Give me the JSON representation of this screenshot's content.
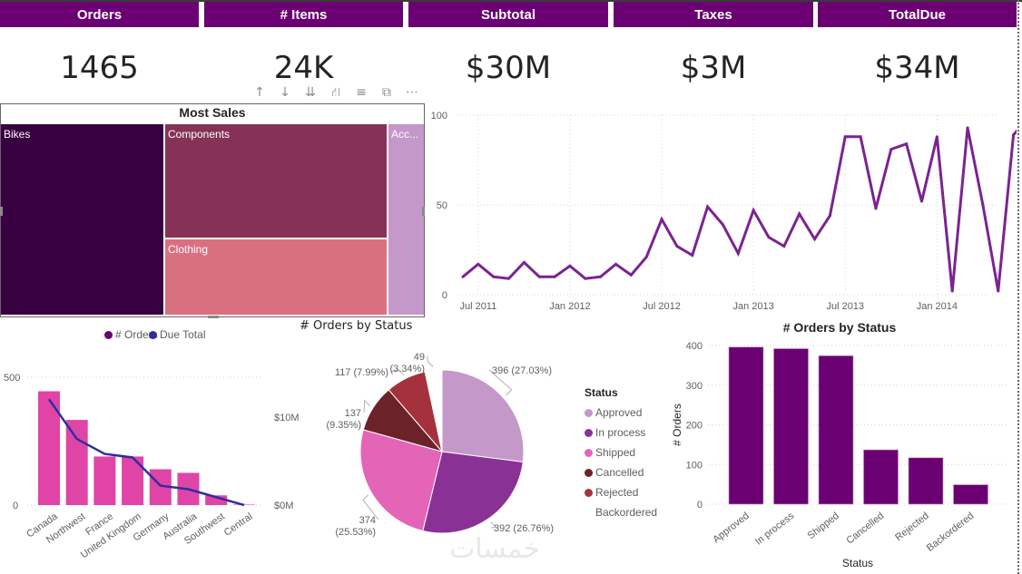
{
  "kpis": [
    {
      "label": "Orders",
      "value": "1465"
    },
    {
      "label": "# Items",
      "value": "24K"
    },
    {
      "label": "Subtotal",
      "value": "$30M"
    },
    {
      "label": "Taxes",
      "value": "$3M"
    },
    {
      "label": "TotalDue",
      "value": "$34M"
    }
  ],
  "colors": {
    "header_bg": "#6b0073",
    "line": "#7b2391",
    "combo_bar": "#e044a7",
    "combo_line": "#2e2e9e",
    "status_bar": "#6b0073"
  },
  "toolbar": {
    "icons": [
      "arrow-up-icon",
      "arrow-down-icon",
      "double-arrow-down-icon",
      "expand-hierarchy-icon",
      "filter-icon",
      "focus-mode-icon",
      "more-options-icon"
    ],
    "glyphs": [
      "↑",
      "↓",
      "⇊",
      "⛙",
      "≡",
      "⧉",
      "⋯"
    ]
  },
  "watermark": "خمسات",
  "chart_data": [
    {
      "type": "treemap",
      "title": "Most Sales",
      "categories": [
        "Bikes",
        "Components",
        "Clothing",
        "Acc..."
      ],
      "colors": [
        "#380040",
        "#863257",
        "#d97080",
        "#c498c8"
      ],
      "relative_share": [
        0.39,
        0.33,
        0.21,
        0.07
      ]
    },
    {
      "type": "line",
      "title": "",
      "x_tick_labels": [
        "Jul 2011",
        "Jan 2012",
        "Jul 2012",
        "Jan 2013",
        "Jul 2013",
        "Jan 2014"
      ],
      "y_tick_labels": [
        "0",
        "50",
        "100"
      ],
      "ylim": [
        0,
        100
      ],
      "grid": true,
      "series": [
        {
          "name": "# Orders",
          "x": [
            "2011-06",
            "2011-07",
            "2011-08",
            "2011-09",
            "2011-10",
            "2011-11",
            "2011-12",
            "2012-01",
            "2012-02",
            "2012-03",
            "2012-04",
            "2012-05",
            "2012-06",
            "2012-07",
            "2012-08",
            "2012-09",
            "2012-10",
            "2012-11",
            "2012-12",
            "2013-01",
            "2013-02",
            "2013-03",
            "2013-04",
            "2013-05",
            "2013-06",
            "2013-07",
            "2013-08",
            "2013-09",
            "2013-10",
            "2013-11",
            "2013-12",
            "2014-01",
            "2014-02",
            "2014-03",
            "2014-04",
            "2014-05",
            "2014-06",
            "2014-07"
          ],
          "values": [
            10,
            17,
            10,
            9,
            18,
            10,
            10,
            16,
            9,
            10,
            17,
            11,
            21,
            42,
            27,
            22,
            49,
            39,
            23,
            47,
            32,
            27,
            45,
            31,
            44,
            88,
            88,
            48,
            81,
            84,
            52,
            88,
            2,
            93,
            50,
            2,
            89,
            99
          ]
        }
      ]
    },
    {
      "type": "bar+line",
      "title": "",
      "categories": [
        "Canada",
        "Northwest",
        "France",
        "United Kingdom",
        "Germany",
        "Australia",
        "Southwest",
        "Central"
      ],
      "series": [
        {
          "name": "# Orders",
          "axis": "left",
          "values": [
            445,
            333,
            190,
            190,
            140,
            126,
            38,
            4
          ]
        },
        {
          "name": "Due Total",
          "axis": "right",
          "values_millions": [
            12.0,
            7.5,
            5.8,
            5.4,
            2.2,
            1.8,
            0.9,
            0.0
          ]
        }
      ],
      "legend": [
        {
          "name": "# Orders",
          "color": "#6b0073"
        },
        {
          "name": "Due Total",
          "color": "#2e2e9e"
        }
      ],
      "legend_position": "top-center",
      "left_axis_labels": [
        "0",
        "500"
      ],
      "right_axis_labels": [
        "$0M",
        "$10M"
      ],
      "ylim_left": [
        0,
        500
      ],
      "ylim_right_millions": [
        0,
        14.5
      ]
    },
    {
      "type": "pie",
      "title": "# Orders by Status",
      "legend_title": "Status",
      "legend_position": "right",
      "slices": [
        {
          "label": "Approved",
          "value": 396,
          "pct": "27.03%",
          "color": "#c498c8"
        },
        {
          "label": "In process",
          "value": 392,
          "pct": "26.76%",
          "color": "#8a3196"
        },
        {
          "label": "Shipped",
          "value": 374,
          "pct": "25.53%",
          "color": "#e464b8"
        },
        {
          "label": "Cancelled",
          "value": 137,
          "pct": "9.35%",
          "color": "#6b2228"
        },
        {
          "label": "Rejected",
          "value": 117,
          "pct": "7.99%",
          "color": "#a5313d"
        },
        {
          "label": "Backordered",
          "value": 49,
          "pct": "3.34%",
          "color": "#ffffff"
        }
      ]
    },
    {
      "type": "bar",
      "title": "# Orders by Status",
      "xlabel": "Status",
      "ylabel": "# Orders",
      "categories": [
        "Approved",
        "In process",
        "Shipped",
        "Cancelled",
        "Rejected",
        "Backordered"
      ],
      "values": [
        396,
        392,
        374,
        137,
        117,
        49
      ],
      "y_tick_labels": [
        "0",
        "100",
        "200",
        "300",
        "400"
      ],
      "ylim": [
        0,
        400
      ],
      "grid": true
    }
  ]
}
